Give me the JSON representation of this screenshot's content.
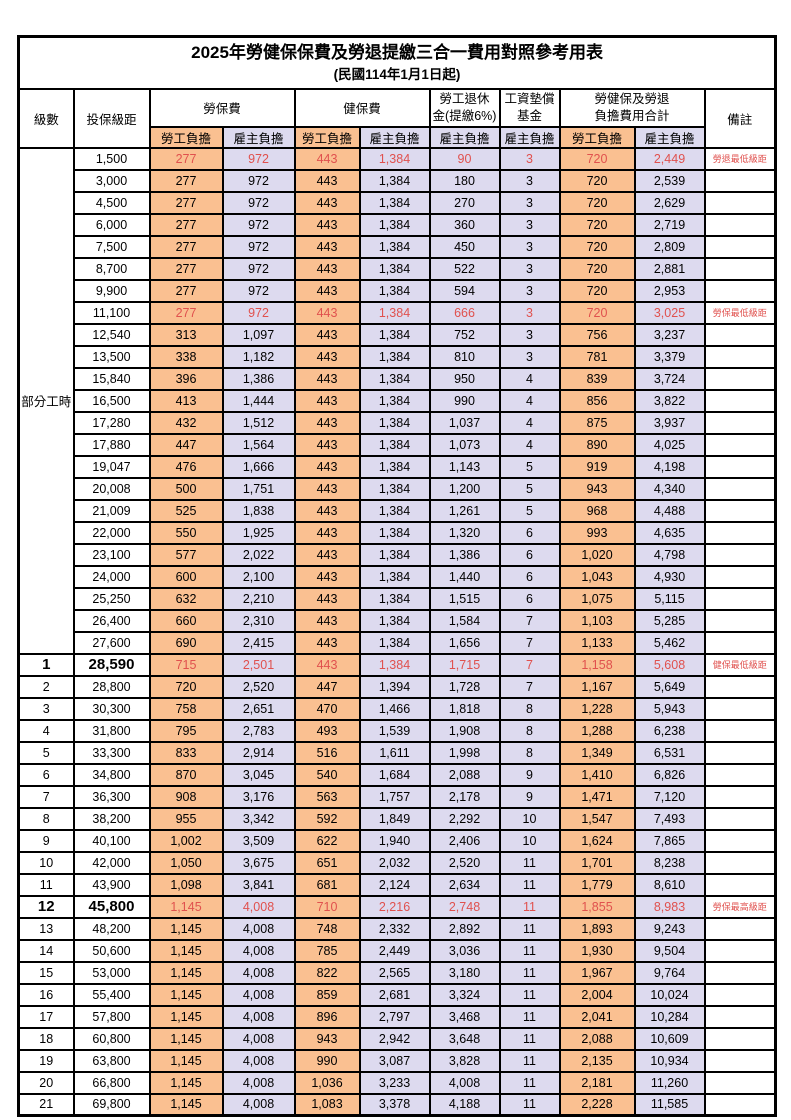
{
  "title": "2025年勞健保保費及勞退提繳三合一費用對照參考用表",
  "subtitle": "(民國114年1月1日起)",
  "colors": {
    "worker_column_bg": "#FAC091",
    "employer_column_bg": "#DDDAEF",
    "highlight_red": "#E0514E",
    "border": "#000000"
  },
  "header": {
    "level": "級數",
    "salary_bracket": "投保級距",
    "labor_insurance": "勞保費",
    "health_insurance": "健保費",
    "pension_line1": "勞工退休",
    "pension_line2": "金(提繳6%)",
    "wage_fund_line1": "工資墊償",
    "wage_fund_line2": "基金",
    "total_line1": "勞健保及勞退",
    "total_line2": "負擔費用合計",
    "worker_share": "勞工負擔",
    "employer_share": "雇主負擔",
    "remark": "備註"
  },
  "part_time_label": "部分工時",
  "part_time_rows": [
    {
      "salary": "1,500",
      "values": [
        "277",
        "972",
        "443",
        "1,384",
        "90",
        "3",
        "720",
        "2,449"
      ],
      "remark": "勞退最低級距",
      "red": true
    },
    {
      "salary": "3,000",
      "values": [
        "277",
        "972",
        "443",
        "1,384",
        "180",
        "3",
        "720",
        "2,539"
      ],
      "remark": ""
    },
    {
      "salary": "4,500",
      "values": [
        "277",
        "972",
        "443",
        "1,384",
        "270",
        "3",
        "720",
        "2,629"
      ],
      "remark": ""
    },
    {
      "salary": "6,000",
      "values": [
        "277",
        "972",
        "443",
        "1,384",
        "360",
        "3",
        "720",
        "2,719"
      ],
      "remark": ""
    },
    {
      "salary": "7,500",
      "values": [
        "277",
        "972",
        "443",
        "1,384",
        "450",
        "3",
        "720",
        "2,809"
      ],
      "remark": ""
    },
    {
      "salary": "8,700",
      "values": [
        "277",
        "972",
        "443",
        "1,384",
        "522",
        "3",
        "720",
        "2,881"
      ],
      "remark": ""
    },
    {
      "salary": "9,900",
      "values": [
        "277",
        "972",
        "443",
        "1,384",
        "594",
        "3",
        "720",
        "2,953"
      ],
      "remark": ""
    },
    {
      "salary": "11,100",
      "values": [
        "277",
        "972",
        "443",
        "1,384",
        "666",
        "3",
        "720",
        "3,025"
      ],
      "remark": "勞保最低級距",
      "red": true
    },
    {
      "salary": "12,540",
      "values": [
        "313",
        "1,097",
        "443",
        "1,384",
        "752",
        "3",
        "756",
        "3,237"
      ],
      "remark": ""
    },
    {
      "salary": "13,500",
      "values": [
        "338",
        "1,182",
        "443",
        "1,384",
        "810",
        "3",
        "781",
        "3,379"
      ],
      "remark": ""
    },
    {
      "salary": "15,840",
      "values": [
        "396",
        "1,386",
        "443",
        "1,384",
        "950",
        "4",
        "839",
        "3,724"
      ],
      "remark": ""
    },
    {
      "salary": "16,500",
      "values": [
        "413",
        "1,444",
        "443",
        "1,384",
        "990",
        "4",
        "856",
        "3,822"
      ],
      "remark": ""
    },
    {
      "salary": "17,280",
      "values": [
        "432",
        "1,512",
        "443",
        "1,384",
        "1,037",
        "4",
        "875",
        "3,937"
      ],
      "remark": ""
    },
    {
      "salary": "17,880",
      "values": [
        "447",
        "1,564",
        "443",
        "1,384",
        "1,073",
        "4",
        "890",
        "4,025"
      ],
      "remark": ""
    },
    {
      "salary": "19,047",
      "values": [
        "476",
        "1,666",
        "443",
        "1,384",
        "1,143",
        "5",
        "919",
        "4,198"
      ],
      "remark": ""
    },
    {
      "salary": "20,008",
      "values": [
        "500",
        "1,751",
        "443",
        "1,384",
        "1,200",
        "5",
        "943",
        "4,340"
      ],
      "remark": ""
    },
    {
      "salary": "21,009",
      "values": [
        "525",
        "1,838",
        "443",
        "1,384",
        "1,261",
        "5",
        "968",
        "4,488"
      ],
      "remark": ""
    },
    {
      "salary": "22,000",
      "values": [
        "550",
        "1,925",
        "443",
        "1,384",
        "1,320",
        "6",
        "993",
        "4,635"
      ],
      "remark": ""
    },
    {
      "salary": "23,100",
      "values": [
        "577",
        "2,022",
        "443",
        "1,384",
        "1,386",
        "6",
        "1,020",
        "4,798"
      ],
      "remark": ""
    },
    {
      "salary": "24,000",
      "values": [
        "600",
        "2,100",
        "443",
        "1,384",
        "1,440",
        "6",
        "1,043",
        "4,930"
      ],
      "remark": ""
    },
    {
      "salary": "25,250",
      "values": [
        "632",
        "2,210",
        "443",
        "1,384",
        "1,515",
        "6",
        "1,075",
        "5,115"
      ],
      "remark": ""
    },
    {
      "salary": "26,400",
      "values": [
        "660",
        "2,310",
        "443",
        "1,384",
        "1,584",
        "7",
        "1,103",
        "5,285"
      ],
      "remark": ""
    },
    {
      "salary": "27,600",
      "values": [
        "690",
        "2,415",
        "443",
        "1,384",
        "1,656",
        "7",
        "1,133",
        "5,462"
      ],
      "remark": ""
    }
  ],
  "level_rows": [
    {
      "level": "1",
      "salary": "28,590",
      "values": [
        "715",
        "2,501",
        "443",
        "1,384",
        "1,715",
        "7",
        "1,158",
        "5,608"
      ],
      "remark": "健保最低級距",
      "red": true,
      "bold": true
    },
    {
      "level": "2",
      "salary": "28,800",
      "values": [
        "720",
        "2,520",
        "447",
        "1,394",
        "1,728",
        "7",
        "1,167",
        "5,649"
      ],
      "remark": ""
    },
    {
      "level": "3",
      "salary": "30,300",
      "values": [
        "758",
        "2,651",
        "470",
        "1,466",
        "1,818",
        "8",
        "1,228",
        "5,943"
      ],
      "remark": ""
    },
    {
      "level": "4",
      "salary": "31,800",
      "values": [
        "795",
        "2,783",
        "493",
        "1,539",
        "1,908",
        "8",
        "1,288",
        "6,238"
      ],
      "remark": ""
    },
    {
      "level": "5",
      "salary": "33,300",
      "values": [
        "833",
        "2,914",
        "516",
        "1,611",
        "1,998",
        "8",
        "1,349",
        "6,531"
      ],
      "remark": ""
    },
    {
      "level": "6",
      "salary": "34,800",
      "values": [
        "870",
        "3,045",
        "540",
        "1,684",
        "2,088",
        "9",
        "1,410",
        "6,826"
      ],
      "remark": ""
    },
    {
      "level": "7",
      "salary": "36,300",
      "values": [
        "908",
        "3,176",
        "563",
        "1,757",
        "2,178",
        "9",
        "1,471",
        "7,120"
      ],
      "remark": ""
    },
    {
      "level": "8",
      "salary": "38,200",
      "values": [
        "955",
        "3,342",
        "592",
        "1,849",
        "2,292",
        "10",
        "1,547",
        "7,493"
      ],
      "remark": ""
    },
    {
      "level": "9",
      "salary": "40,100",
      "values": [
        "1,002",
        "3,509",
        "622",
        "1,940",
        "2,406",
        "10",
        "1,624",
        "7,865"
      ],
      "remark": ""
    },
    {
      "level": "10",
      "salary": "42,000",
      "values": [
        "1,050",
        "3,675",
        "651",
        "2,032",
        "2,520",
        "11",
        "1,701",
        "8,238"
      ],
      "remark": ""
    },
    {
      "level": "11",
      "salary": "43,900",
      "values": [
        "1,098",
        "3,841",
        "681",
        "2,124",
        "2,634",
        "11",
        "1,779",
        "8,610"
      ],
      "remark": ""
    },
    {
      "level": "12",
      "salary": "45,800",
      "values": [
        "1,145",
        "4,008",
        "710",
        "2,216",
        "2,748",
        "11",
        "1,855",
        "8,983"
      ],
      "remark": "勞保最高級距",
      "red": true,
      "bold": true
    },
    {
      "level": "13",
      "salary": "48,200",
      "values": [
        "1,145",
        "4,008",
        "748",
        "2,332",
        "2,892",
        "11",
        "1,893",
        "9,243"
      ],
      "remark": ""
    },
    {
      "level": "14",
      "salary": "50,600",
      "values": [
        "1,145",
        "4,008",
        "785",
        "2,449",
        "3,036",
        "11",
        "1,930",
        "9,504"
      ],
      "remark": ""
    },
    {
      "level": "15",
      "salary": "53,000",
      "values": [
        "1,145",
        "4,008",
        "822",
        "2,565",
        "3,180",
        "11",
        "1,967",
        "9,764"
      ],
      "remark": ""
    },
    {
      "level": "16",
      "salary": "55,400",
      "values": [
        "1,145",
        "4,008",
        "859",
        "2,681",
        "3,324",
        "11",
        "2,004",
        "10,024"
      ],
      "remark": ""
    },
    {
      "level": "17",
      "salary": "57,800",
      "values": [
        "1,145",
        "4,008",
        "896",
        "2,797",
        "3,468",
        "11",
        "2,041",
        "10,284"
      ],
      "remark": ""
    },
    {
      "level": "18",
      "salary": "60,800",
      "values": [
        "1,145",
        "4,008",
        "943",
        "2,942",
        "3,648",
        "11",
        "2,088",
        "10,609"
      ],
      "remark": ""
    },
    {
      "level": "19",
      "salary": "63,800",
      "values": [
        "1,145",
        "4,008",
        "990",
        "3,087",
        "3,828",
        "11",
        "2,135",
        "10,934"
      ],
      "remark": ""
    },
    {
      "level": "20",
      "salary": "66,800",
      "values": [
        "1,145",
        "4,008",
        "1,036",
        "3,233",
        "4,008",
        "11",
        "2,181",
        "11,260"
      ],
      "remark": ""
    },
    {
      "level": "21",
      "salary": "69,800",
      "values": [
        "1,145",
        "4,008",
        "1,083",
        "3,378",
        "4,188",
        "11",
        "2,228",
        "11,585"
      ],
      "remark": ""
    }
  ]
}
